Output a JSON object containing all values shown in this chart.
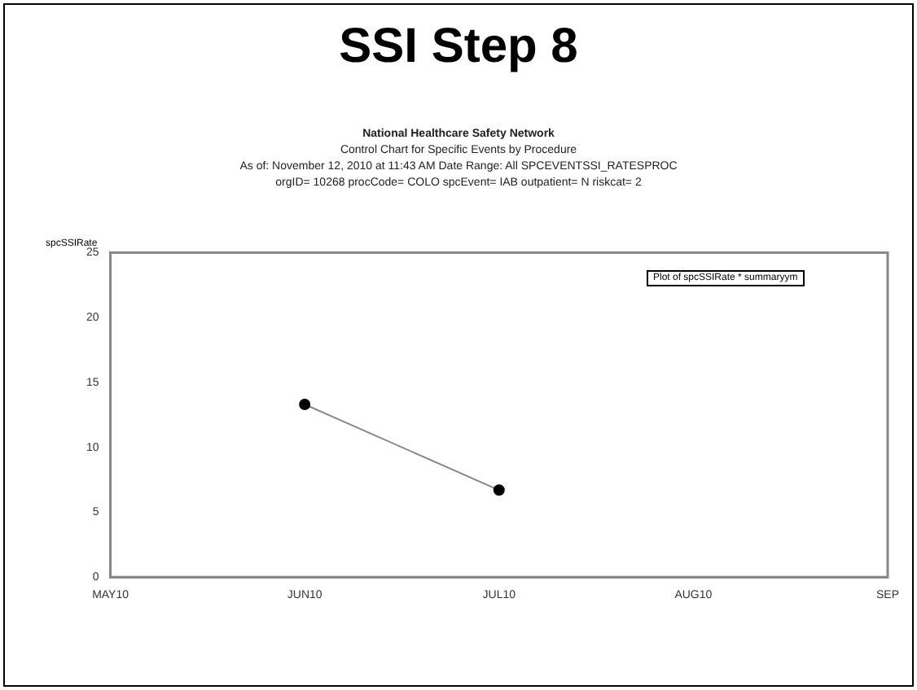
{
  "chart_data": {
    "type": "line",
    "title": "SSI Step 8",
    "subtitle": "National Healthcare Safety Network",
    "annotations": [
      "Control Chart for Specific Events by Procedure",
      "As of:  November 12, 2010 at 11:43 AM Date Range:  All SPCEVENTSSI_RATESPROC",
      "orgID= 10268 procCode= COLO spcEvent= IAB outpatient= N riskcat= 2",
      "Plot of spcSSIRate * summaryym"
    ],
    "ylabel": "spcSSIRate",
    "categories": [
      "MAY10",
      "JUN10",
      "JUL10",
      "AUG10",
      "SEP"
    ],
    "series": [
      {
        "color": "#888888",
        "values": [
          null,
          13.3,
          6.7,
          null,
          null
        ]
      }
    ],
    "marker": "circle",
    "ylim": [
      0,
      25
    ],
    "yticks": [
      0,
      5,
      10,
      15,
      20,
      25
    ],
    "grid": false,
    "legend": false
  }
}
